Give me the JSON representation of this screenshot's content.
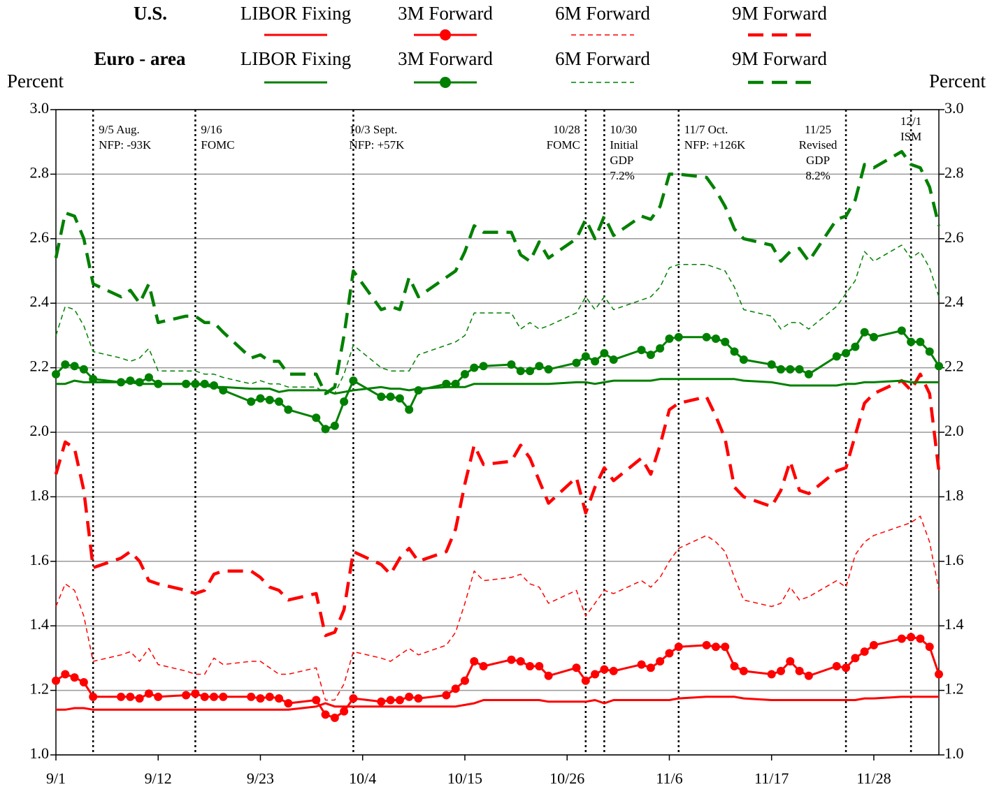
{
  "chart_data": {
    "type": "line",
    "y_label": "Percent",
    "y2_label": "Percent",
    "legend_groups": [
      "U.S.",
      "Euro - area"
    ],
    "x": [
      "9/1",
      "9/2",
      "9/3",
      "9/4",
      "9/5",
      "9/8",
      "9/9",
      "9/10",
      "9/11",
      "9/12",
      "9/15",
      "9/16",
      "9/17",
      "9/18",
      "9/19",
      "9/22",
      "9/23",
      "9/24",
      "9/25",
      "9/26",
      "9/29",
      "9/30",
      "10/1",
      "10/2",
      "10/3",
      "10/6",
      "10/7",
      "10/8",
      "10/9",
      "10/10",
      "10/13",
      "10/14",
      "10/15",
      "10/16",
      "10/17",
      "10/20",
      "10/21",
      "10/22",
      "10/23",
      "10/24",
      "10/27",
      "10/28",
      "10/29",
      "10/30",
      "10/31",
      "11/3",
      "11/4",
      "11/5",
      "11/6",
      "11/7",
      "11/10",
      "11/11",
      "11/12",
      "11/13",
      "11/14",
      "11/17",
      "11/18",
      "11/19",
      "11/20",
      "11/21",
      "11/24",
      "11/25",
      "11/26",
      "11/27",
      "11/28",
      "12/1",
      "12/2",
      "12/3",
      "12/4",
      "12/5"
    ],
    "xlim": [
      "9/1",
      "12/5"
    ],
    "xticks": [
      "9/1",
      "9/12",
      "9/23",
      "10/4",
      "10/15",
      "10/26",
      "11/6",
      "11/17",
      "11/28"
    ],
    "ylim": [
      1,
      3
    ],
    "yticks": [
      {
        "value": 1,
        "label": "1.0"
      },
      1.2,
      1.4,
      1.6,
      1.8,
      {
        "value": 2,
        "label": "2.0"
      },
      2.2,
      2.4,
      2.6,
      2.8,
      {
        "value": 3,
        "label": "3.0"
      }
    ],
    "y2lim": [
      1,
      3
    ],
    "y2ticks": [
      {
        "value": 1,
        "label": "1.0"
      },
      1.2,
      1.4,
      1.6,
      1.8,
      {
        "value": 2,
        "label": "2.0"
      },
      2.2,
      2.4,
      2.6,
      2.8,
      {
        "value": 3,
        "label": "3.0"
      }
    ],
    "grid": true,
    "series": [
      {
        "name": "LIBOR Fixing",
        "color": "#ff0000",
        "style": "solid",
        "values": [
          1.14,
          1.14,
          1.145,
          1.145,
          1.14,
          1.14,
          1.14,
          1.14,
          1.14,
          1.14,
          1.14,
          1.14,
          1.14,
          1.14,
          1.14,
          1.14,
          1.14,
          1.14,
          1.14,
          1.14,
          1.15,
          1.16,
          1.15,
          1.15,
          1.15,
          1.15,
          1.15,
          1.15,
          1.15,
          1.15,
          1.15,
          1.15,
          1.155,
          1.16,
          1.17,
          1.17,
          1.17,
          1.17,
          1.17,
          1.165,
          1.165,
          1.165,
          1.17,
          1.16,
          1.17,
          1.17,
          1.17,
          1.17,
          1.17,
          1.175,
          1.18,
          1.18,
          1.18,
          1.18,
          1.175,
          1.17,
          1.17,
          1.17,
          1.17,
          1.17,
          1.17,
          1.17,
          1.17,
          1.175,
          1.175,
          1.18,
          1.18,
          1.18,
          1.18,
          1.18
        ]
      },
      {
        "name": "3M Forward",
        "color": "#ff0000",
        "style": "markers",
        "values": [
          1.23,
          1.25,
          1.24,
          1.225,
          1.18,
          1.18,
          1.18,
          1.175,
          1.19,
          1.18,
          1.185,
          1.19,
          1.18,
          1.18,
          1.18,
          1.18,
          1.175,
          1.18,
          1.175,
          1.16,
          1.17,
          1.125,
          1.115,
          1.135,
          1.175,
          1.165,
          1.17,
          1.17,
          1.18,
          1.175,
          1.185,
          1.205,
          1.23,
          1.29,
          1.275,
          1.295,
          1.29,
          1.275,
          1.275,
          1.245,
          1.27,
          1.23,
          1.25,
          1.265,
          1.26,
          1.28,
          1.27,
          1.29,
          1.315,
          1.335,
          1.34,
          1.335,
          1.335,
          1.275,
          1.26,
          1.25,
          1.26,
          1.29,
          1.26,
          1.245,
          1.275,
          1.27,
          1.3,
          1.32,
          1.34,
          1.36,
          1.365,
          1.36,
          1.335,
          1.25
        ]
      },
      {
        "name": "6M Forward",
        "color": "#ff0000",
        "style": "dash",
        "values": [
          1.46,
          1.53,
          1.51,
          1.43,
          1.29,
          1.31,
          1.32,
          1.29,
          1.33,
          1.28,
          1.26,
          1.25,
          1.25,
          1.3,
          1.28,
          1.29,
          1.29,
          1.27,
          1.25,
          1.25,
          1.27,
          1.17,
          1.17,
          1.22,
          1.32,
          1.3,
          1.29,
          1.31,
          1.33,
          1.31,
          1.34,
          1.38,
          1.47,
          1.57,
          1.54,
          1.55,
          1.56,
          1.53,
          1.52,
          1.47,
          1.51,
          1.43,
          1.47,
          1.51,
          1.5,
          1.54,
          1.52,
          1.55,
          1.6,
          1.64,
          1.68,
          1.66,
          1.63,
          1.55,
          1.48,
          1.46,
          1.47,
          1.52,
          1.48,
          1.49,
          1.54,
          1.52,
          1.62,
          1.66,
          1.68,
          1.71,
          1.72,
          1.74,
          1.66,
          1.51
        ]
      },
      {
        "name": "9M Forward",
        "color": "#ff0000",
        "style": "longdash",
        "values": [
          1.87,
          1.97,
          1.95,
          1.82,
          1.58,
          1.61,
          1.63,
          1.6,
          1.54,
          1.53,
          1.51,
          1.5,
          1.51,
          1.56,
          1.57,
          1.57,
          1.55,
          1.52,
          1.51,
          1.48,
          1.5,
          1.37,
          1.38,
          1.45,
          1.63,
          1.59,
          1.56,
          1.61,
          1.64,
          1.6,
          1.63,
          1.7,
          1.84,
          1.96,
          1.9,
          1.91,
          1.96,
          1.92,
          1.85,
          1.78,
          1.86,
          1.75,
          1.83,
          1.89,
          1.85,
          1.92,
          1.87,
          1.96,
          2.07,
          2.09,
          2.11,
          2.05,
          1.98,
          1.83,
          1.8,
          1.77,
          1.82,
          1.91,
          1.82,
          1.81,
          1.88,
          1.89,
          1.99,
          2.09,
          2.12,
          2.16,
          2.13,
          2.18,
          2.12,
          1.88
        ]
      },
      {
        "name": "LIBOR Fixing",
        "color": "#008000",
        "style": "solid",
        "values": [
          2.15,
          2.15,
          2.16,
          2.155,
          2.155,
          2.155,
          2.155,
          2.15,
          2.15,
          2.15,
          2.15,
          2.15,
          2.145,
          2.14,
          2.14,
          2.135,
          2.135,
          2.135,
          2.125,
          2.13,
          2.13,
          2.13,
          2.12,
          2.125,
          2.13,
          2.14,
          2.135,
          2.135,
          2.13,
          2.135,
          2.14,
          2.14,
          2.14,
          2.15,
          2.15,
          2.15,
          2.15,
          2.15,
          2.15,
          2.15,
          2.155,
          2.155,
          2.15,
          2.155,
          2.16,
          2.16,
          2.16,
          2.165,
          2.165,
          2.165,
          2.165,
          2.165,
          2.165,
          2.165,
          2.16,
          2.155,
          2.15,
          2.145,
          2.145,
          2.145,
          2.145,
          2.15,
          2.15,
          2.155,
          2.155,
          2.16,
          2.155,
          2.155,
          2.155,
          2.155
        ]
      },
      {
        "name": "3M Forward",
        "color": "#008000",
        "style": "markers",
        "values": [
          2.18,
          2.21,
          2.205,
          2.195,
          2.165,
          2.155,
          2.16,
          2.155,
          2.17,
          2.15,
          2.15,
          2.15,
          2.15,
          2.145,
          2.13,
          2.095,
          2.105,
          2.1,
          2.095,
          2.07,
          2.045,
          2.01,
          2.02,
          2.095,
          2.16,
          2.11,
          2.11,
          2.105,
          2.07,
          2.13,
          2.15,
          2.15,
          2.18,
          2.2,
          2.205,
          2.21,
          2.19,
          2.19,
          2.205,
          2.195,
          2.215,
          2.235,
          2.22,
          2.245,
          2.225,
          2.255,
          2.24,
          2.26,
          2.29,
          2.295,
          2.295,
          2.29,
          2.28,
          2.25,
          2.225,
          2.21,
          2.195,
          2.195,
          2.195,
          2.18,
          2.235,
          2.245,
          2.265,
          2.31,
          2.295,
          2.315,
          2.28,
          2.28,
          2.25,
          2.205
        ]
      },
      {
        "name": "6M Forward",
        "color": "#008000",
        "style": "dash",
        "values": [
          2.3,
          2.39,
          2.38,
          2.33,
          2.25,
          2.23,
          2.22,
          2.23,
          2.26,
          2.19,
          2.19,
          2.19,
          2.18,
          2.18,
          2.17,
          2.15,
          2.16,
          2.15,
          2.15,
          2.14,
          2.14,
          2.12,
          2.12,
          2.18,
          2.27,
          2.2,
          2.19,
          2.19,
          2.19,
          2.24,
          2.27,
          2.28,
          2.3,
          2.37,
          2.37,
          2.37,
          2.32,
          2.34,
          2.32,
          2.33,
          2.37,
          2.42,
          2.38,
          2.42,
          2.38,
          2.41,
          2.42,
          2.45,
          2.51,
          2.52,
          2.52,
          2.51,
          2.5,
          2.45,
          2.38,
          2.36,
          2.32,
          2.34,
          2.34,
          2.32,
          2.39,
          2.43,
          2.47,
          2.56,
          2.53,
          2.58,
          2.54,
          2.56,
          2.51,
          2.42
        ]
      },
      {
        "name": "9M Forward",
        "color": "#008000",
        "style": "longdash",
        "values": [
          2.54,
          2.68,
          2.67,
          2.6,
          2.46,
          2.42,
          2.44,
          2.4,
          2.46,
          2.34,
          2.36,
          2.36,
          2.34,
          2.34,
          2.31,
          2.23,
          2.24,
          2.22,
          2.22,
          2.18,
          2.18,
          2.12,
          2.14,
          2.3,
          2.5,
          2.38,
          2.39,
          2.38,
          2.48,
          2.42,
          2.48,
          2.5,
          2.56,
          2.64,
          2.62,
          2.62,
          2.55,
          2.53,
          2.59,
          2.54,
          2.6,
          2.66,
          2.6,
          2.67,
          2.61,
          2.67,
          2.66,
          2.7,
          2.8,
          2.8,
          2.79,
          2.75,
          2.7,
          2.63,
          2.6,
          2.58,
          2.53,
          2.56,
          2.57,
          2.53,
          2.66,
          2.67,
          2.72,
          2.83,
          2.82,
          2.87,
          2.83,
          2.82,
          2.76,
          2.64
        ]
      }
    ],
    "annotations": [
      {
        "x": "9/5",
        "text": [
          "9/5 Aug.",
          "NFP:  -93K"
        ]
      },
      {
        "x": "9/16",
        "text": [
          "9/16",
          "FOMC"
        ]
      },
      {
        "x": "10/3",
        "text": [
          "10/3 Sept.",
          "NFP: +57K"
        ]
      },
      {
        "x": "10/28",
        "text": [
          "10/28",
          "FOMC"
        ]
      },
      {
        "x": "10/30",
        "text": [
          "10/30",
          "Initial",
          "GDP",
          "7.2%"
        ]
      },
      {
        "x": "11/7",
        "text": [
          "11/7 Oct.",
          "NFP: +126K"
        ]
      },
      {
        "x": "11/25",
        "text": [
          "11/25",
          "Revised",
          "GDP",
          "8.2%"
        ]
      },
      {
        "x": "12/2",
        "text": [
          "12/1",
          "ISM"
        ]
      }
    ]
  }
}
